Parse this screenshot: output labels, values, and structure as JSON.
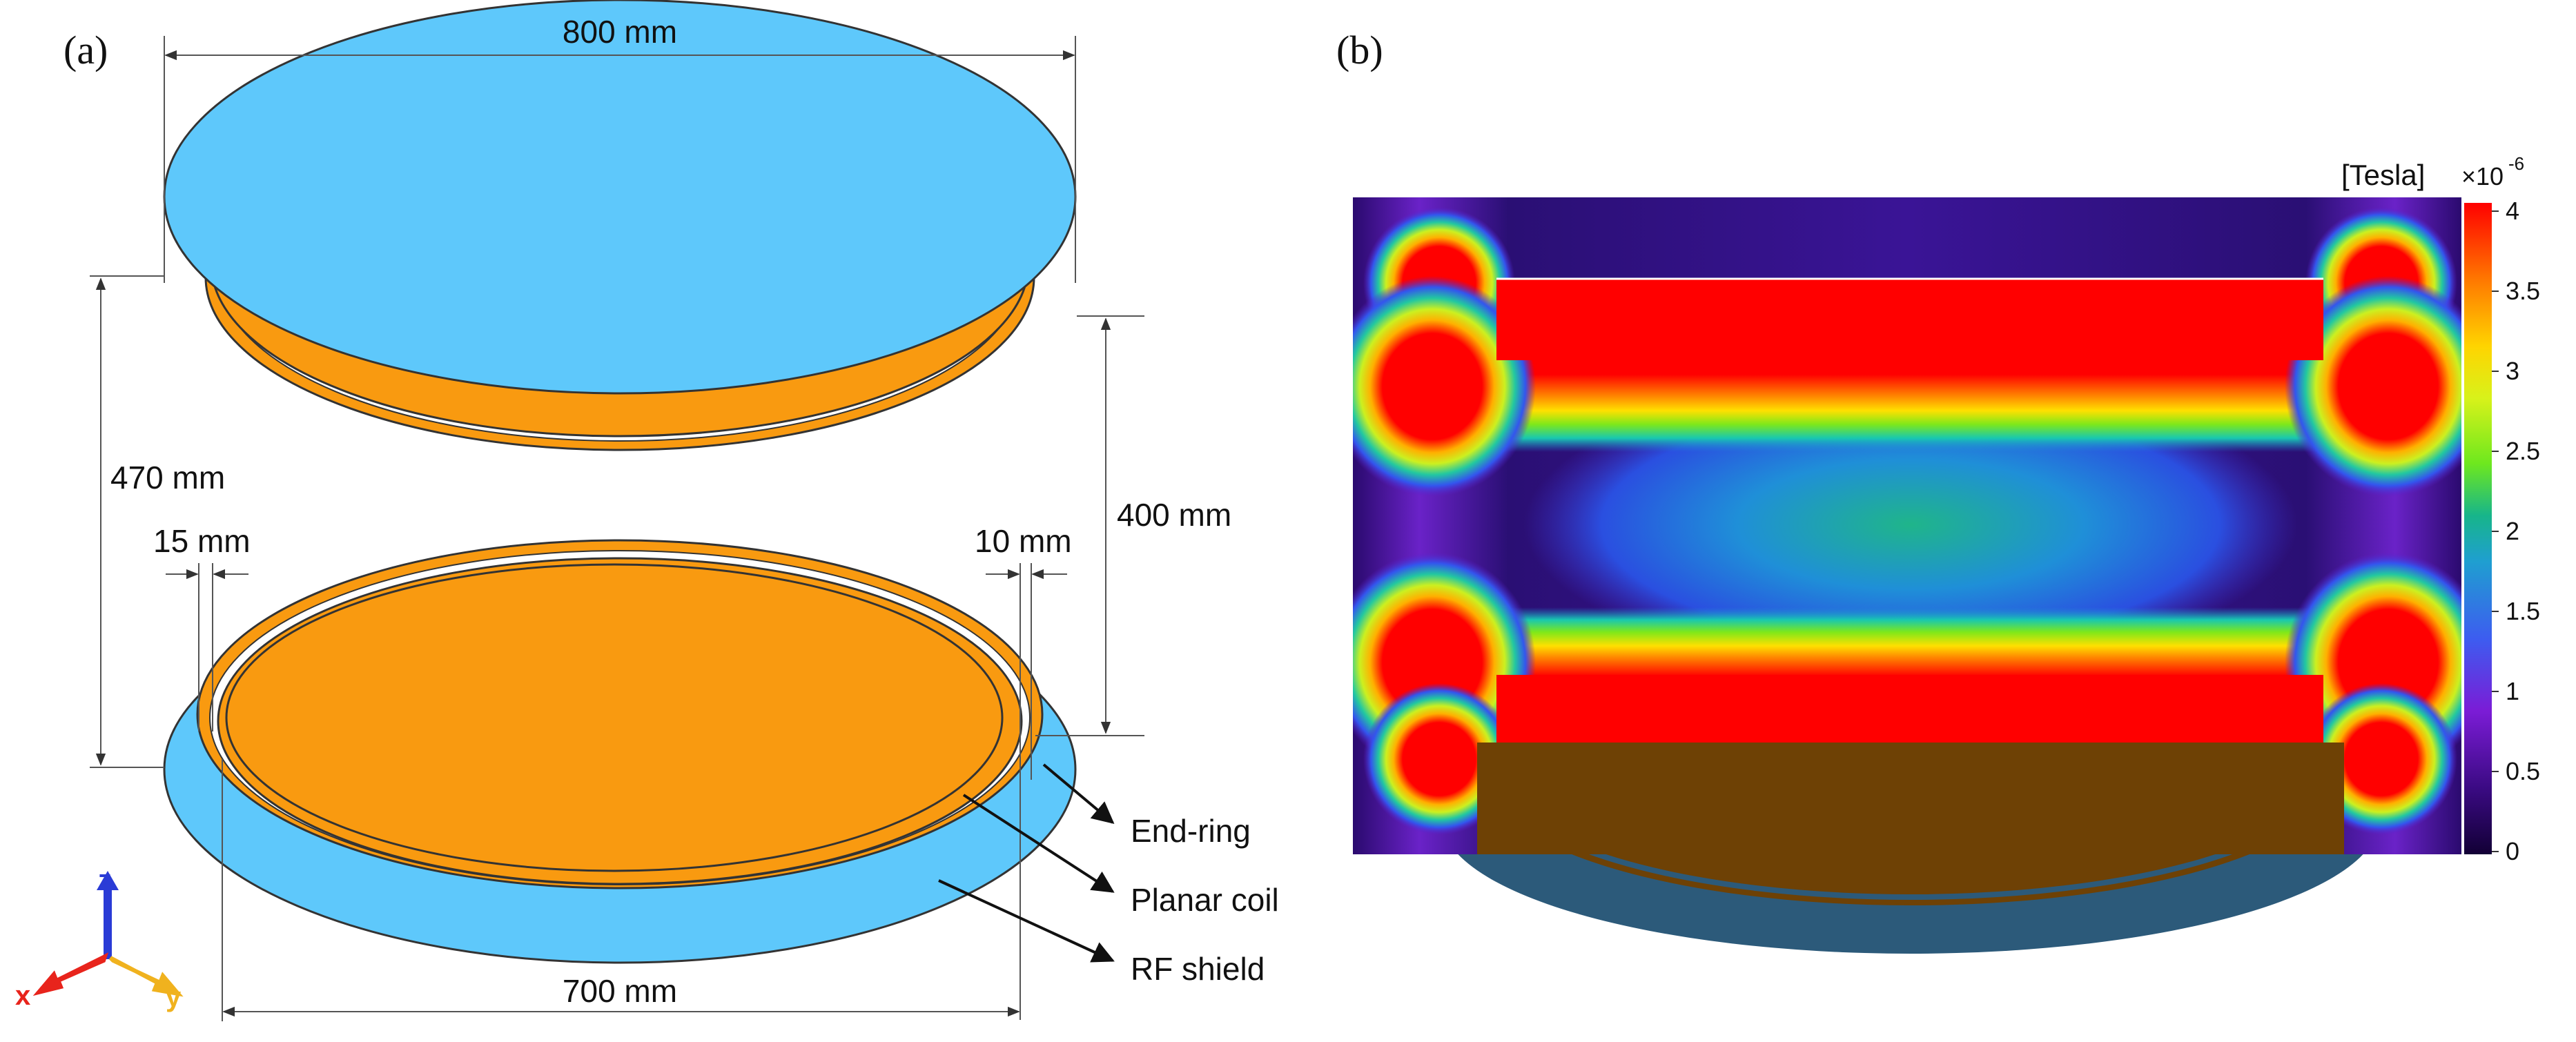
{
  "panel_a": {
    "label": "(a)",
    "dimensions": {
      "diameter_shield": "800 mm",
      "height_total": "470 mm",
      "height_inner": "400 mm",
      "gap_left": "15 mm",
      "gap_right": "10 mm",
      "diameter_coil": "700 mm"
    },
    "callouts": {
      "end_ring": "End-ring",
      "planar_coil": "Planar coil",
      "rf_shield": "RF shield"
    },
    "axes": {
      "x": "x",
      "y": "y",
      "z": "z"
    },
    "colors": {
      "shield": "#5ec8fb",
      "coil": "#f99a10",
      "x_axis": "#e8241c",
      "y_axis": "#f0b21e",
      "z_axis": "#2a3bd6"
    }
  },
  "panel_b": {
    "label": "(b)",
    "colorbar": {
      "unit": "[Tesla]",
      "multiplier": "×10",
      "exponent": "-6",
      "ticks": [
        "4",
        "3.5",
        "3",
        "2.5",
        "2",
        "1.5",
        "1",
        "0.5",
        "0"
      ]
    },
    "colors": {
      "shield_underside": "#2c5a7a",
      "coil_underside": "#6e4105"
    }
  }
}
